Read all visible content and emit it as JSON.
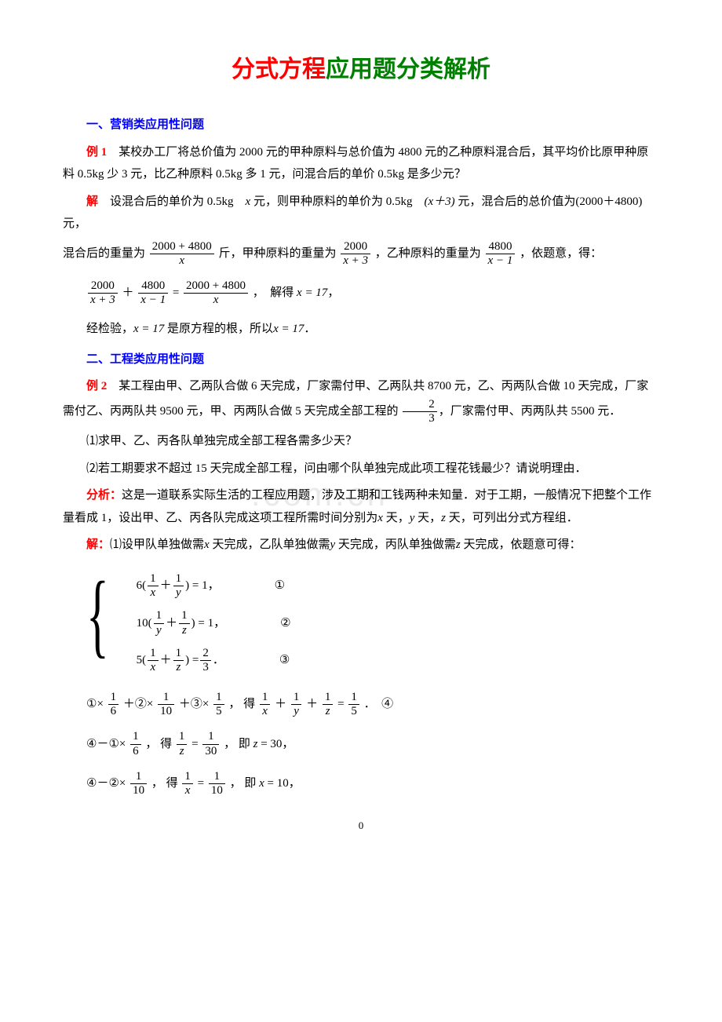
{
  "doc": {
    "title_part1": "分式方程",
    "title_part2": "应用题分类解析",
    "watermark": ".com.cn",
    "page_number": "0"
  },
  "s1": {
    "heading": "一、营销类应用性问题",
    "ex_label": "例 1",
    "ex_text": "　某校办工厂将总价值为 2000 元的甲种原料与总价值为 4800 元的乙种原料混合后，其平均价比原甲种原料 0.5kg 少 3 元，比乙种原料 0.5kg 多 1 元，问混合后的单价 0.5kg 是多少元？",
    "sol_label": "解",
    "sol_a": "　设混合后的单价为 0.5kg　",
    "sol_b": " 元，则甲种原料的单价为 0.5kg　",
    "sol_c": " 元，混合后的总价值为(2000＋4800)元，",
    "sol_d": "混合后的重量为",
    "sol_e": "斤，甲种原料的重量为",
    "sol_f": "，乙种原料的重量为",
    "sol_g": "，依题意，得：",
    "eq_solve": "，　解得",
    "check_a": "经检验，",
    "check_b": " 是原方程的根，所以",
    "check_c": "．",
    "x": "x",
    "xp3": "(x＋3)",
    "x17": "x = 17",
    "f1n": "2000 + 4800",
    "f1d": "x",
    "f2n": "2000",
    "f2d": "x + 3",
    "f3n": "4800",
    "f3d": "x − 1",
    "f4n": "2000",
    "f4d": "x + 3",
    "f5n": "4800",
    "f5d": "x − 1",
    "f6n": "2000 + 4800",
    "f6d": "x"
  },
  "s2": {
    "heading": "二、工程类应用性问题",
    "ex_label": "例 2",
    "ex_text": "　某工程由甲、乙两队合做 6 天完成，厂家需付甲、乙两队共 8700 元，乙、丙两队合做 10 天完成，厂家需付乙、丙两队共 9500 元，甲、丙两队合做 5 天完成全部工程的",
    "ex_text_b": "，厂家需付甲、丙两队共 5500 元．",
    "q1": "⑴求甲、乙、丙各队单独完成全部工程各需多少天？",
    "q2": "⑵若工期要求不超过 15 天完成全部工程，问由哪个队单独完成此项工程花钱最少？请说明理由．",
    "an_label": "分析：",
    "an_text_a": "这是一道联系实际生活的工程应用题，涉及工期和工钱两种未知量．对于工期，一般情况下把整个工作量看成 1，设出甲、乙、丙各队完成这项工程所需时间分别为",
    "an_text_b": " 天，",
    "an_text_c": " 天，",
    "an_text_d": " 天，可列出分式方程组．",
    "sol_label": "解：",
    "sol_text_a": "⑴设甲队单独做需",
    "sol_text_b": " 天完成，乙队单独做需",
    "sol_text_c": " 天完成，丙队单独做需",
    "sol_text_d": " 天完成，依题意可得：",
    "x": "x",
    "y": "y",
    "z": "z",
    "f23n": "2",
    "f23d": "3",
    "eq1_a": "6(",
    "eq1_b": ") = 1，",
    "eq2_a": "10(",
    "eq2_b": ") = 1，",
    "eq3_a": "5(",
    "eq3_b": ") = ",
    "eq3_c": "．",
    "c1": "①",
    "c2": "②",
    "c3": "③",
    "c4": "④",
    "one": "1",
    "step4_a": "①×",
    "step4_b": " ＋②×",
    "step4_c": " ＋③×",
    "step4_d": "， 得",
    "step4_e": "．　④",
    "f6": "6",
    "f10": "10",
    "f5": "5",
    "step5_a": "④－①×",
    "step5_b": "， 得",
    "step5_c": "， 即 ",
    "z30": "z",
    "z30v": " = 30，",
    "f30": "30",
    "step6_a": "④－②×",
    "step6_b": "， 得",
    "step6_c": "， 即 ",
    "x10": "x",
    "x10v": " = 10，"
  }
}
